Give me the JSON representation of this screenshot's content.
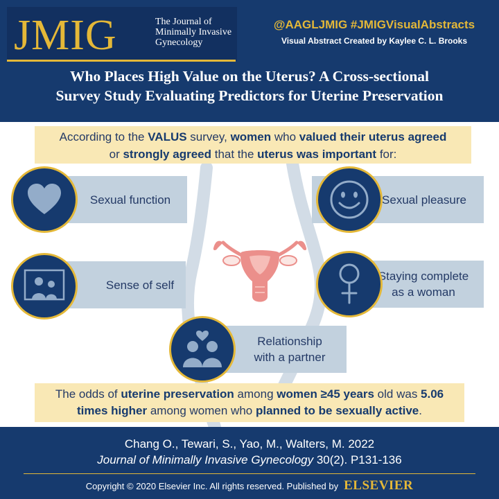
{
  "header": {
    "logo_text": "JMIG",
    "logo_subtitle": "The Journal of Minimally Invasive Gynecology",
    "handles": "@AAGLJMIG  #JMIGVisualAbstracts",
    "credit": "Visual Abstract Created  by Kaylee C. L. Brooks",
    "title_line1": "Who Places High Value on the Uterus? A Cross-sectional",
    "title_line2": "Survey Study Evaluating Predictors for Uterine Preservation"
  },
  "intro": {
    "t1": "According to the ",
    "t2": "VALUS",
    "t3": " survey, ",
    "t4": "women",
    "t5": " who ",
    "t6": "valued their uterus agreed",
    "t7": "or ",
    "t8": "strongly agreed",
    "t9": " that the ",
    "t10": "uterus was important",
    "t11": " for:"
  },
  "items": {
    "sexual_function": "Sexual function",
    "sexual_pleasure": "Sexual pleasure",
    "sense_of_self": "Sense of self",
    "staying_complete_l1": "Staying complete",
    "staying_complete_l2": "as a woman",
    "relationship_l1": "Relationship",
    "relationship_l2": "with a partner"
  },
  "odds": {
    "t1": "The odds of ",
    "t2": "uterine preservation",
    "t3": " among ",
    "t4": "women ≥45 years",
    "t5": " old was ",
    "t6": "5.06",
    "t7": "times higher",
    "t8": " among women who ",
    "t9": "planned to be sexually active",
    "t10": "."
  },
  "footer": {
    "citation": "Chang O., Tewari, S., Yao, M., Walters, M.  2022",
    "journal": "Journal of Minimally Invasive Gynecology",
    "volume": " 30(2). P131-136",
    "copyright": "Copyright © 2020 Elsevier Inc. All rights reserved. Published by",
    "publisher": "ELSEVIER"
  },
  "colors": {
    "navy": "#163a6e",
    "gold": "#e4b838",
    "cream": "#f9e8b5",
    "card_blue": "#c2d1de",
    "uterus_pink": "#eb8f8b"
  },
  "icons": [
    "heart-icon",
    "smiley-icon",
    "family-picture-icon",
    "female-symbol-icon",
    "couple-heart-icon",
    "uterus-illustration",
    "body-outline"
  ]
}
